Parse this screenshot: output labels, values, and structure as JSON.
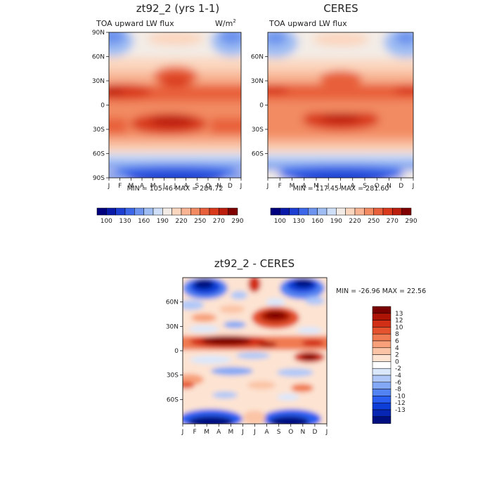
{
  "colors": {
    "scale_blue_to_red": [
      "#00007f",
      "#0a1aa8",
      "#1c3fd2",
      "#3b67e8",
      "#6c93ee",
      "#9fbdf3",
      "#cfdff8",
      "#f3ece6",
      "#fbd6be",
      "#f8b493",
      "#f28b62",
      "#e8603b",
      "#d93a1c",
      "#bb1e0c",
      "#7f0000"
    ],
    "diff_scale_neg_to_pos": [
      "#000f80",
      "#0726b4",
      "#0d3fd8",
      "#2a5ef0",
      "#5383f2",
      "#83a8f5",
      "#b0c8f8",
      "#dbe7fb",
      "#ffffff",
      "#fde3d2",
      "#fbc4a6",
      "#f7a07a",
      "#f07a51",
      "#e4532e",
      "#d12f16",
      "#ad1406",
      "#7a0000"
    ]
  },
  "chart_data": [
    {
      "type": "heatmap",
      "title": "zt92_2 (yrs 1-1)",
      "subtitle_left": "TOA upward LW flux",
      "subtitle_right": "W/m",
      "subtitle_right_sup": "2",
      "x_ticks": [
        "J",
        "F",
        "M",
        "A",
        "M",
        "J",
        "J",
        "A",
        "S",
        "O",
        "N",
        "D",
        "J"
      ],
      "y_ticks": [
        "90N",
        "60N",
        "30N",
        "0",
        "30S",
        "60S",
        "90S"
      ],
      "y_tick_values": [
        90,
        60,
        30,
        0,
        -30,
        -60,
        -90
      ],
      "ylim": [
        -90,
        90
      ],
      "min_max_text": "MIN = 105.46 MAX = 284.72",
      "min": 105.46,
      "max": 284.72,
      "colorbar_labels": [
        "100",
        "130",
        "160",
        "190",
        "220",
        "250",
        "270",
        "290"
      ]
    },
    {
      "type": "heatmap",
      "title": "CERES",
      "subtitle_left": "TOA upward LW flux",
      "y_ticks": [
        "60N",
        "30N",
        "0",
        "30S",
        "60S"
      ],
      "y_tick_values": [
        60,
        30,
        0,
        -30,
        -60
      ],
      "x_ticks": [
        "J",
        "F",
        "M",
        "A",
        "M",
        "J",
        "J",
        "A",
        "S",
        "O",
        "N",
        "D",
        "J"
      ],
      "ylim": [
        -90,
        90
      ],
      "min_max_text": "MIN = 117.45 MAX = 281.60",
      "min": 117.45,
      "max": 281.6,
      "colorbar_labels": [
        "100",
        "130",
        "160",
        "190",
        "220",
        "250",
        "270",
        "290"
      ]
    },
    {
      "type": "heatmap",
      "title": "zt92_2 - CERES",
      "y_ticks": [
        "60N",
        "30N",
        "0",
        "30S",
        "60S"
      ],
      "y_tick_values": [
        60,
        30,
        0,
        -30,
        -60
      ],
      "x_ticks": [
        "J",
        "F",
        "M",
        "A",
        "M",
        "J",
        "J",
        "A",
        "S",
        "O",
        "N",
        "D",
        "J"
      ],
      "ylim": [
        -90,
        90
      ],
      "min_max_text": "MIN = -26.96 MAX =  22.56",
      "min": -26.96,
      "max": 22.56,
      "colorbar_labels": [
        "13",
        "12",
        "10",
        "8",
        "6",
        "4",
        "2",
        "0",
        "-2",
        "-4",
        "-6",
        "-8",
        "-10",
        "-12",
        "-13"
      ]
    }
  ]
}
